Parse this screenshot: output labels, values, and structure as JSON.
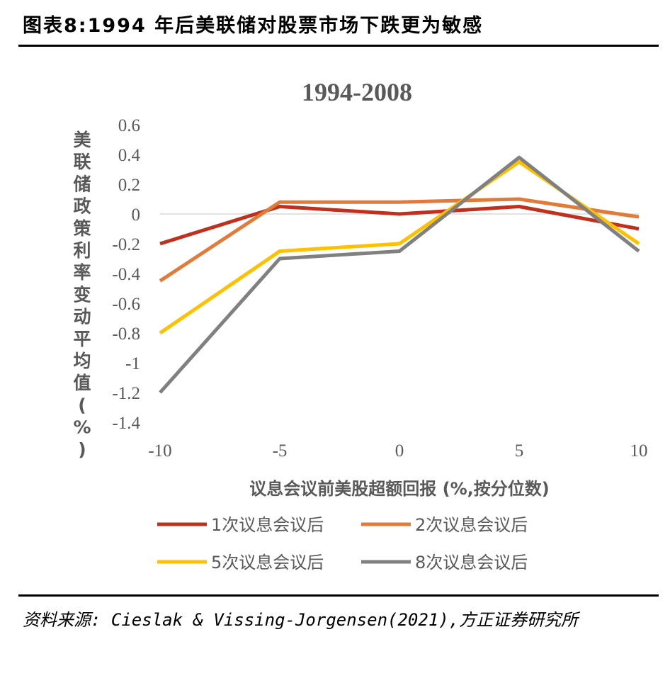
{
  "figure_title": "图表8:1994 年后美联储对股票市场下跌更为敏感",
  "source": "资料来源: Cieslak & Vissing-Jorgensen(2021),方正证券研究所",
  "chart_data": {
    "type": "line",
    "title": "1994-2008",
    "xlabel": "议息会议前美股超额回报 (%,按分位数)",
    "ylabel": "美联储政策利率变动平均值 (%)",
    "x": [
      -10,
      -5,
      0,
      5,
      10
    ],
    "x_tick_labels": [
      "-10",
      "-5",
      "0",
      "5",
      "10"
    ],
    "y_tick_labels": [
      "0.6",
      "0.4",
      "0.2",
      "0",
      "-0.2",
      "-0.4",
      "-0.6",
      "-0.8",
      "-1",
      "-1.2",
      "-1.4"
    ],
    "ylim": [
      -1.4,
      0.6
    ],
    "xlim": [
      -10,
      10
    ],
    "series": [
      {
        "name": "1次议息会议后",
        "color": "#C0301C",
        "values": [
          -0.2,
          0.05,
          0.0,
          0.05,
          -0.1
        ]
      },
      {
        "name": "2次议息会议后",
        "color": "#E07B39",
        "values": [
          -0.45,
          0.08,
          0.08,
          0.1,
          -0.02
        ]
      },
      {
        "name": "5次议息会议后",
        "color": "#FFC000",
        "values": [
          -0.8,
          -0.25,
          -0.2,
          0.35,
          -0.2
        ]
      },
      {
        "name": "8次议息会议后",
        "color": "#808080",
        "values": [
          -1.2,
          -0.3,
          -0.25,
          0.38,
          -0.25
        ]
      }
    ]
  }
}
